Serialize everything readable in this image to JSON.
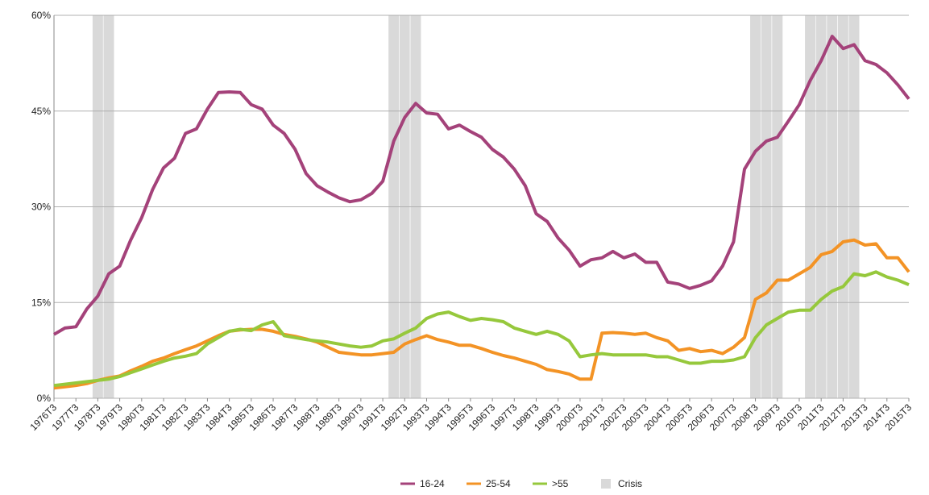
{
  "chart_data": {
    "type": "line",
    "categories": [
      "1976T3",
      null,
      "1977T3",
      null,
      "1978T3",
      null,
      "1979T3",
      null,
      "1980T3",
      null,
      "1981T3",
      null,
      "1982T3",
      null,
      "1983T3",
      null,
      "1984T3",
      null,
      "1985T3",
      null,
      "1986T3",
      null,
      "1987T3",
      null,
      "1988T3",
      null,
      "1989T3",
      null,
      "1990T3",
      null,
      "1991T3",
      null,
      "1992T3",
      null,
      "1993T3",
      null,
      "1994T3",
      null,
      "1995T3",
      null,
      "1996T3",
      null,
      "1997T3",
      null,
      "1998T3",
      null,
      "1999T3",
      null,
      "2000T3",
      null,
      "2001T3",
      null,
      "2002T3",
      null,
      "2003T3",
      null,
      "2004T3",
      null,
      "2005T3",
      null,
      "2006T3",
      null,
      "2007T3",
      null,
      "2008T3",
      null,
      "2009T3",
      null,
      "2010T3",
      null,
      "2011T3",
      null,
      "2012T3",
      null,
      "2013T3",
      null,
      "2014T3",
      null,
      "2015T3"
    ],
    "series": [
      {
        "name": "16-24",
        "color": "#a4427a",
        "values": [
          10.0,
          11,
          11.2,
          14,
          16,
          19.5,
          20.7,
          24.8,
          28.3,
          32.7,
          36.1,
          37.6,
          41.5,
          42.2,
          45.3,
          47.9,
          48,
          47.9,
          46,
          45.3,
          42.8,
          41.5,
          39,
          35.2,
          33.3,
          32.3,
          31.4,
          30.8,
          31.1,
          32.1,
          34,
          40.3,
          44,
          46.2,
          44.7,
          44.5,
          42.2,
          42.8,
          41.8,
          40.9,
          39,
          37.8,
          35.9,
          33.3,
          28.9,
          27.7,
          25.1,
          23.2,
          20.7,
          21.7,
          22,
          23,
          22,
          22.6,
          21.3,
          21.3,
          18.2,
          17.9,
          17.2,
          17.7,
          18.4,
          20.7,
          24.5,
          35.9,
          38.7,
          40.3,
          40.9,
          43.4,
          46,
          49.8,
          52.9,
          56.7,
          54.8,
          55.4,
          52.9,
          52.3,
          51,
          49.1,
          46.9
        ]
      },
      {
        "name": "25-54",
        "color": "#f39325",
        "values": [
          1.6,
          1.8,
          2.0,
          2.3,
          2.8,
          3.2,
          3.5,
          4.3,
          5.0,
          5.8,
          6.3,
          7.0,
          7.6,
          8.2,
          9.0,
          9.8,
          10.5,
          10.7,
          10.8,
          10.8,
          10.5,
          10.0,
          9.7,
          9.3,
          8.8,
          8.0,
          7.2,
          7.0,
          6.8,
          6.8,
          7.0,
          7.2,
          8.5,
          9.2,
          9.8,
          9.2,
          8.8,
          8.3,
          8.3,
          7.8,
          7.2,
          6.7,
          6.3,
          5.8,
          5.3,
          4.5,
          4.2,
          3.8,
          3.0,
          3.0,
          10.2,
          10.3,
          10.2,
          10.0,
          10.2,
          9.5,
          9.0,
          7.5,
          7.8,
          7.3,
          7.5,
          7.0,
          8.0,
          9.5,
          15.5,
          16.5,
          18.5,
          18.5,
          19.5,
          20.5,
          22.5,
          23.0,
          24.5,
          24.8,
          24.0,
          24.2,
          22.0,
          22.0,
          19.8
        ]
      },
      {
        "name": ">55",
        "color": "#96c83c",
        "values": [
          2.0,
          2.2,
          2.4,
          2.6,
          2.8,
          3.0,
          3.4,
          4.0,
          4.6,
          5.2,
          5.8,
          6.3,
          6.6,
          7.0,
          8.5,
          9.5,
          10.5,
          10.8,
          10.6,
          11.5,
          12.0,
          9.8,
          9.5,
          9.2,
          9.0,
          8.8,
          8.5,
          8.2,
          8.0,
          8.2,
          9.0,
          9.3,
          10.2,
          11.0,
          12.5,
          13.2,
          13.5,
          12.8,
          12.2,
          12.5,
          12.3,
          12.0,
          11.0,
          10.5,
          10.0,
          10.5,
          10.0,
          9.0,
          6.5,
          6.8,
          7.0,
          6.8,
          6.8,
          6.8,
          6.8,
          6.5,
          6.5,
          6.0,
          5.5,
          5.5,
          5.8,
          5.8,
          6.0,
          6.5,
          9.5,
          11.5,
          12.5,
          13.5,
          13.8,
          13.8,
          15.5,
          16.8,
          17.5,
          19.5,
          19.2,
          19.8,
          19.0,
          18.5,
          17.8
        ]
      }
    ],
    "shading": {
      "name": "Crisis",
      "color": "#d9d9d9",
      "values": [
        null,
        null,
        null,
        null,
        60,
        60,
        null,
        null,
        null,
        null,
        null,
        null,
        null,
        null,
        null,
        null,
        null,
        null,
        null,
        null,
        null,
        null,
        null,
        null,
        null,
        null,
        null,
        null,
        null,
        null,
        null,
        60,
        60,
        60,
        null,
        null,
        null,
        null,
        null,
        null,
        null,
        null,
        null,
        null,
        null,
        null,
        null,
        null,
        null,
        null,
        null,
        null,
        null,
        null,
        null,
        null,
        null,
        null,
        null,
        null,
        null,
        null,
        null,
        null,
        60,
        60,
        60,
        null,
        null,
        60,
        60,
        60,
        60,
        60,
        null,
        null,
        null,
        null,
        null
      ]
    },
    "ylim": [
      0,
      60
    ],
    "yticks": [
      {
        "value": 0,
        "label": "0%"
      },
      {
        "value": 15,
        "label": "15%"
      },
      {
        "value": 30,
        "label": "30%"
      },
      {
        "value": 45,
        "label": "45%"
      },
      {
        "value": 60,
        "label": "60%"
      }
    ],
    "grid": true,
    "legend": "bottom"
  }
}
